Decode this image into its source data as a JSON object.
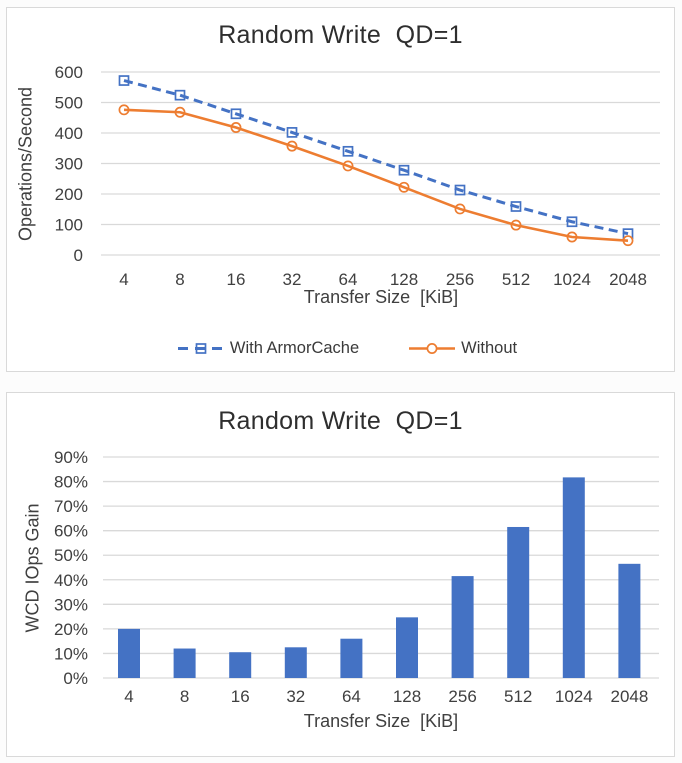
{
  "page": {
    "background": "#fcfcfc",
    "panel_border": "#d9d9d9",
    "text_color": "#404040",
    "accent_blue": "#4472C4",
    "accent_orange": "#ED7D31"
  },
  "chart_data": [
    {
      "type": "line",
      "title": "Random Write  QD=1",
      "ylabel": "Operations/Second",
      "xlabel": "Transfer Size  [KiB]",
      "categories": [
        "4",
        "8",
        "16",
        "32",
        "64",
        "128",
        "256",
        "512",
        "1024",
        "2048"
      ],
      "yticks": [
        0,
        100,
        200,
        300,
        400,
        500,
        600
      ],
      "ytick_suffix": "",
      "ylim": [
        0,
        600
      ],
      "grid": true,
      "grid_color": "#d9d9d9",
      "legend_position": "bottom",
      "series": [
        {
          "name": "With ArmorCache",
          "color": "#4472C4",
          "style": "dashed",
          "marker": "square",
          "values": [
            572,
            524,
            463,
            402,
            340,
            278,
            213,
            159,
            109,
            70
          ]
        },
        {
          "name": "Without",
          "color": "#ED7D31",
          "style": "solid",
          "marker": "circle",
          "values": [
            476,
            468,
            418,
            357,
            292,
            222,
            151,
            98,
            59,
            47
          ]
        }
      ]
    },
    {
      "type": "bar",
      "title": "Random Write  QD=1",
      "ylabel": "WCD IOps Gain",
      "xlabel": "Transfer Size  [KiB]",
      "categories": [
        "4",
        "8",
        "16",
        "32",
        "64",
        "128",
        "256",
        "512",
        "1024",
        "2048"
      ],
      "yticks": [
        0,
        10,
        20,
        30,
        40,
        50,
        60,
        70,
        80,
        90
      ],
      "ytick_suffix": "%",
      "ylim": [
        0,
        90
      ],
      "grid": true,
      "grid_color": "#d9d9d9",
      "bar_color": "#4472C4",
      "values": [
        20,
        12,
        10.5,
        12.5,
        16,
        24.7,
        41.5,
        61.5,
        81.7,
        46.5
      ]
    }
  ]
}
